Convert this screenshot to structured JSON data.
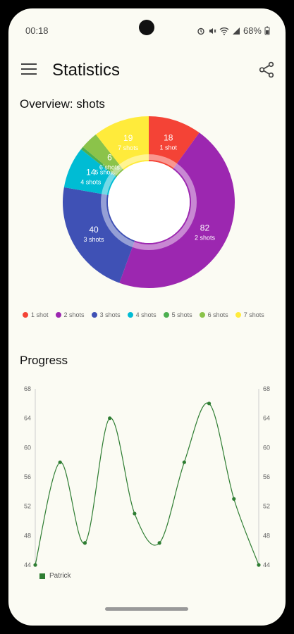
{
  "status_bar": {
    "time": "00:18",
    "battery": "68%",
    "icons": [
      "alarm-icon",
      "mute-icon",
      "wifi-icon",
      "signal-icon",
      "battery-icon"
    ]
  },
  "app_bar": {
    "title": "Statistics",
    "menu_icon": "hamburger-menu-icon",
    "share_icon": "share-icon"
  },
  "overview": {
    "title": "Overview: shots"
  },
  "progress": {
    "title": "Progress"
  },
  "chart_data": [
    {
      "type": "pie",
      "title": "Overview: shots",
      "categories": [
        "1 shot",
        "2 shots",
        "3 shots",
        "4 shots",
        "5 shots",
        "6 shots",
        "7 shots"
      ],
      "values": [
        18,
        82,
        40,
        14,
        1,
        6,
        19
      ],
      "slice_labels": [
        "1 shot",
        "2 shots",
        "3 shots",
        "4 shots",
        "5 shots",
        "6 shots",
        "7 shots"
      ],
      "colors": [
        "#f44336",
        "#9c27b0",
        "#3f51b5",
        "#00bcd4",
        "#4caf50",
        "#8bc34a",
        "#ffeb3b"
      ],
      "legend": "bottom-left",
      "donut": true
    },
    {
      "type": "line",
      "title": "Progress",
      "x": [
        1,
        2,
        3,
        4,
        5,
        6,
        7,
        8,
        9,
        10
      ],
      "series": [
        {
          "name": "Patrick",
          "values": [
            44,
            58,
            47,
            64,
            51,
            47,
            58,
            66,
            53,
            44
          ],
          "color": "#2e7d32"
        }
      ],
      "ylim": [
        44,
        68
      ],
      "yticks": [
        44,
        48,
        52,
        56,
        60,
        64,
        68
      ],
      "grid": false,
      "legend": "bottom-left"
    }
  ]
}
